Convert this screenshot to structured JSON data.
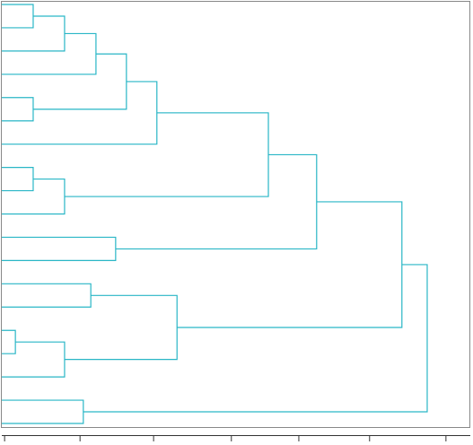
{
  "chart_data": {
    "type": "dendrogram",
    "orientation": "horizontal",
    "color": "#29b6c6",
    "leaves": 19,
    "merges": [
      {
        "left": 0,
        "right": 1,
        "height": 6.7
      },
      {
        "left": 19,
        "right": 2,
        "height": 13.4
      },
      {
        "left": 20,
        "right": 3,
        "height": 20.1
      },
      {
        "left": 4,
        "right": 5,
        "height": 6.7
      },
      {
        "left": 21,
        "right": 22,
        "height": 26.6
      },
      {
        "left": 23,
        "right": 6,
        "height": 33.1
      },
      {
        "left": 7,
        "right": 8,
        "height": 6.7
      },
      {
        "left": 25,
        "right": 9,
        "height": 13.4
      },
      {
        "left": 24,
        "right": 26,
        "height": 56.9
      },
      {
        "left": 10,
        "right": 11,
        "height": 24.3
      },
      {
        "left": 27,
        "right": 28,
        "height": 67.2
      },
      {
        "left": 12,
        "right": 13,
        "height": 19.0
      },
      {
        "left": 14,
        "right": 15,
        "height": 2.9
      },
      {
        "left": 31,
        "right": 16,
        "height": 13.4
      },
      {
        "left": 30,
        "right": 32,
        "height": 37.4
      },
      {
        "left": 29,
        "right": 33,
        "height": 85.4
      },
      {
        "left": 17,
        "right": 18,
        "height": 17.4
      },
      {
        "left": 34,
        "right": 35,
        "height": 90.8
      }
    ],
    "xlim": [
      0,
      100
    ],
    "xticks": [
      0.6,
      16.7,
      32.4,
      49,
      63.4,
      78.5,
      94.8
    ]
  }
}
